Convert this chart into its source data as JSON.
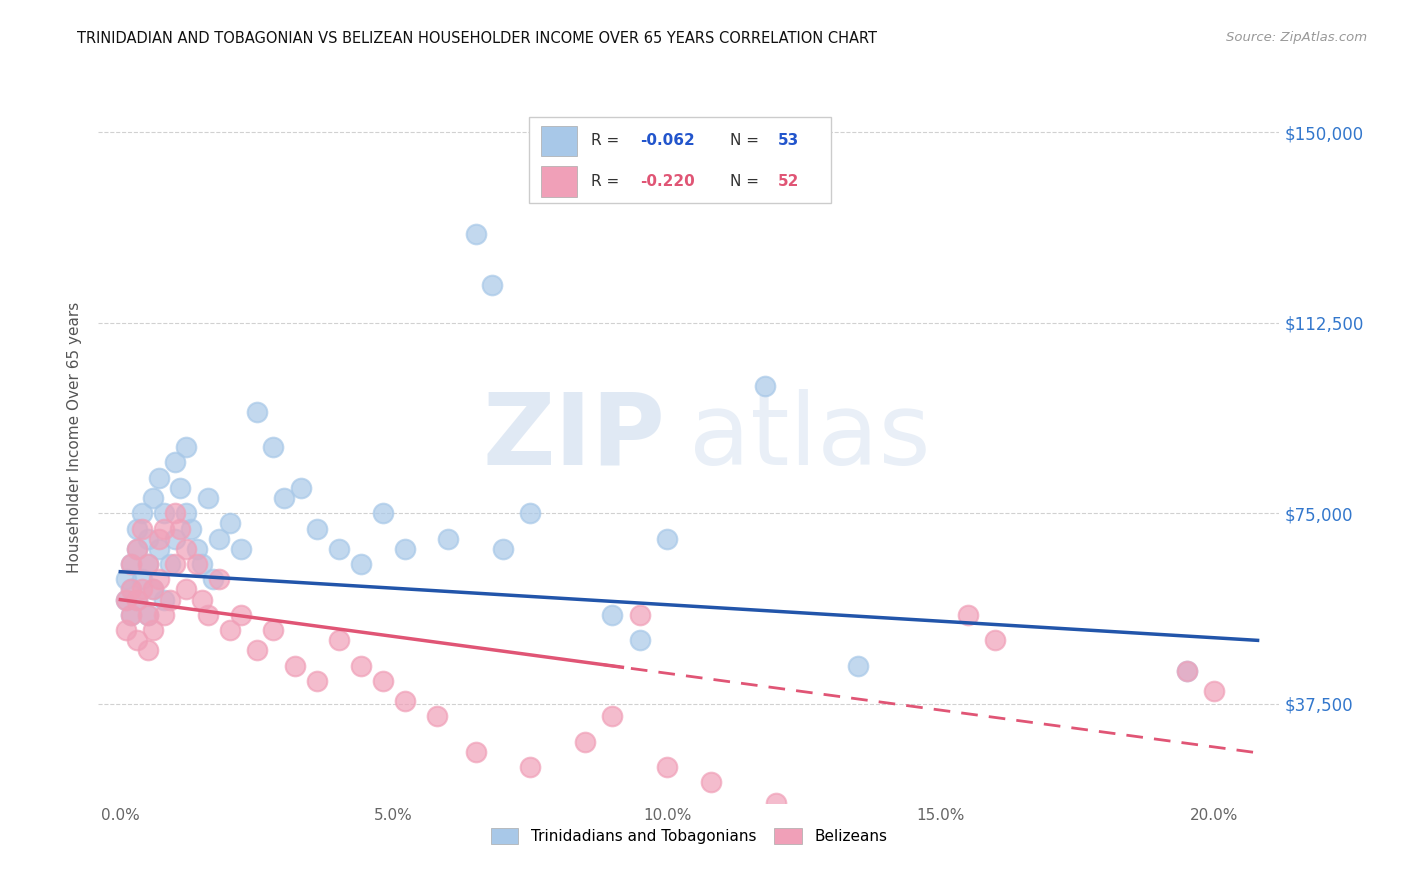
{
  "title": "TRINIDADIAN AND TOBAGONIAN VS BELIZEAN HOUSEHOLDER INCOME OVER 65 YEARS CORRELATION CHART",
  "source": "Source: ZipAtlas.com",
  "ylabel": "Householder Income Over 65 years",
  "xlabel_ticks": [
    "0.0%",
    "5.0%",
    "10.0%",
    "15.0%",
    "20.0%"
  ],
  "xlabel_vals": [
    0.0,
    0.05,
    0.1,
    0.15,
    0.2
  ],
  "ytick_labels": [
    "$37,500",
    "$75,000",
    "$112,500",
    "$150,000"
  ],
  "ytick_vals": [
    37500,
    75000,
    112500,
    150000
  ],
  "ylim": [
    18000,
    162000
  ],
  "xlim": [
    -0.004,
    0.212
  ],
  "color_blue": "#a8c8e8",
  "color_pink": "#f0a0b8",
  "line_blue": "#2255aa",
  "line_pink": "#e05575",
  "watermark_zip": "ZIP",
  "watermark_atlas": "atlas",
  "legend_label1": "Trinidadians and Tobagonians",
  "legend_label2": "Belizeans",
  "blue_intercept": 63500,
  "blue_slope": -65000,
  "pink_intercept": 58000,
  "pink_slope": -145000,
  "blue_x": [
    0.001,
    0.001,
    0.002,
    0.002,
    0.002,
    0.003,
    0.003,
    0.003,
    0.004,
    0.004,
    0.005,
    0.005,
    0.005,
    0.006,
    0.006,
    0.007,
    0.007,
    0.008,
    0.008,
    0.009,
    0.01,
    0.01,
    0.011,
    0.012,
    0.012,
    0.013,
    0.014,
    0.015,
    0.016,
    0.017,
    0.018,
    0.02,
    0.022,
    0.025,
    0.028,
    0.03,
    0.033,
    0.036,
    0.04,
    0.044,
    0.048,
    0.052,
    0.06,
    0.065,
    0.068,
    0.07,
    0.075,
    0.09,
    0.095,
    0.1,
    0.118,
    0.135,
    0.195
  ],
  "blue_y": [
    62000,
    58000,
    65000,
    60000,
    55000,
    68000,
    72000,
    58000,
    75000,
    62000,
    70000,
    55000,
    65000,
    78000,
    60000,
    82000,
    68000,
    75000,
    58000,
    65000,
    85000,
    70000,
    80000,
    88000,
    75000,
    72000,
    68000,
    65000,
    78000,
    62000,
    70000,
    73000,
    68000,
    95000,
    88000,
    78000,
    80000,
    72000,
    68000,
    65000,
    75000,
    68000,
    70000,
    130000,
    120000,
    68000,
    75000,
    55000,
    50000,
    70000,
    100000,
    45000,
    44000
  ],
  "pink_x": [
    0.001,
    0.001,
    0.002,
    0.002,
    0.002,
    0.003,
    0.003,
    0.003,
    0.004,
    0.004,
    0.005,
    0.005,
    0.005,
    0.006,
    0.006,
    0.007,
    0.007,
    0.008,
    0.008,
    0.009,
    0.01,
    0.01,
    0.011,
    0.012,
    0.012,
    0.014,
    0.015,
    0.016,
    0.018,
    0.02,
    0.022,
    0.025,
    0.028,
    0.032,
    0.036,
    0.04,
    0.044,
    0.048,
    0.052,
    0.058,
    0.065,
    0.075,
    0.085,
    0.09,
    0.095,
    0.1,
    0.108,
    0.12,
    0.155,
    0.16,
    0.195,
    0.2
  ],
  "pink_y": [
    58000,
    52000,
    65000,
    60000,
    55000,
    68000,
    58000,
    50000,
    72000,
    60000,
    65000,
    55000,
    48000,
    60000,
    52000,
    70000,
    62000,
    72000,
    55000,
    58000,
    75000,
    65000,
    72000,
    68000,
    60000,
    65000,
    58000,
    55000,
    62000,
    52000,
    55000,
    48000,
    52000,
    45000,
    42000,
    50000,
    45000,
    42000,
    38000,
    35000,
    28000,
    25000,
    30000,
    35000,
    55000,
    25000,
    22000,
    18000,
    55000,
    50000,
    44000,
    40000
  ]
}
